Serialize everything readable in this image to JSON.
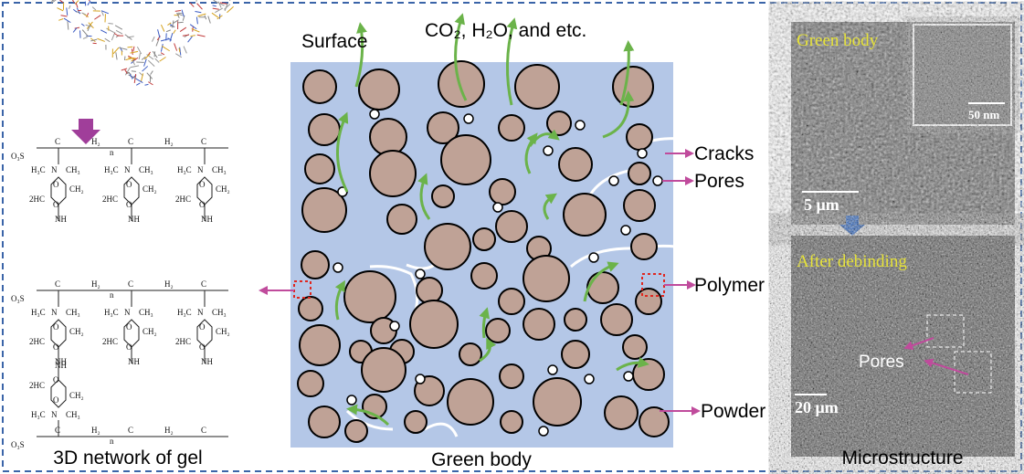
{
  "gel_network": {
    "caption": "3D network of gel",
    "backbone_labels": [
      "O₃S",
      "C",
      "H₂",
      "n"
    ],
    "unit_labels": [
      "H₃C",
      "N",
      "CH₃",
      "O",
      "O",
      "2HC",
      "NH",
      "CH₂"
    ]
  },
  "green_body": {
    "surface_label": "Surface",
    "gases_label": "CO₂, H₂O, and etc.",
    "cracks_label": "Cracks",
    "pores_label": "Pores",
    "polymer_label": "Polymer",
    "powder_label": "Powder",
    "caption": "Green body"
  },
  "microstructure": {
    "caption": "Microstructure",
    "top_image": {
      "label": "Green body",
      "scale_bar": "5 μm",
      "inset_scale_bar": "50 nm"
    },
    "bottom_image": {
      "label": "After debinding",
      "annotation": "Pores",
      "scale_bar": "20 μm"
    }
  }
}
